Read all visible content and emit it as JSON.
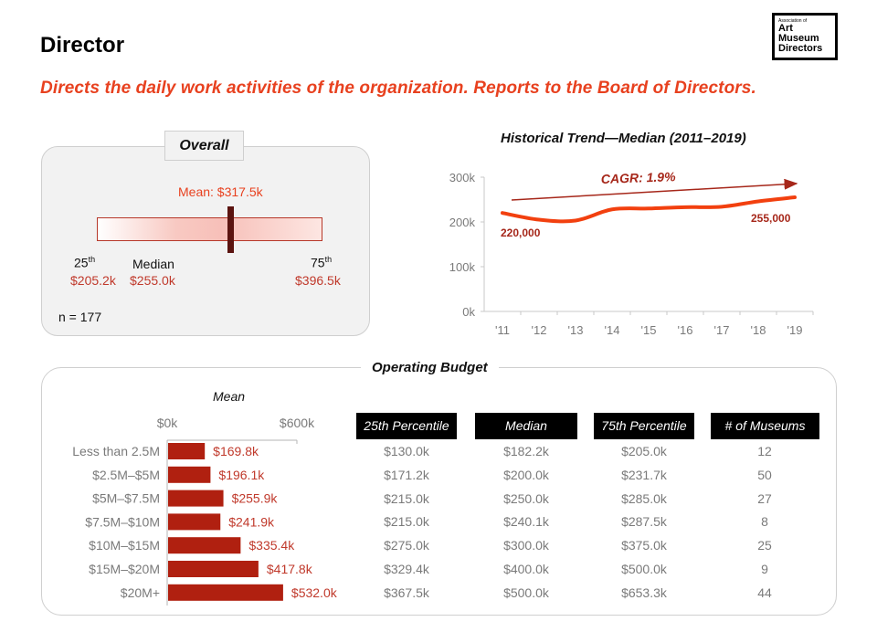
{
  "header": {
    "title": "Director",
    "subtitle": "Directs the daily work activities of the organization. Reports to the Board of Directors.",
    "logo": {
      "line1": "Association of",
      "line2": "Art",
      "line3": "Museum",
      "line4": "Directors"
    }
  },
  "colors": {
    "accent": "#e8411f",
    "bar": "#b02010",
    "dark_marker": "#5b1410",
    "value_text": "#c0392b",
    "arrow": "#a6271a"
  },
  "overall": {
    "tab_label": "Overall",
    "mean_label": "Mean: $317.5k",
    "p25_label": "25",
    "p25_sup": "th",
    "p25_value": "$205.2k",
    "median_label": "Median",
    "median_value": "$255.0k",
    "p75_label": "75",
    "p75_sup": "th",
    "p75_value": "$396.5k",
    "n_label": "n = 177",
    "range": {
      "min": 205.2,
      "max": 396.5,
      "mean": 317.5,
      "median": 255.0
    }
  },
  "chart_data": [
    {
      "type": "line",
      "title": "Historical Trend—Median (2011–2019)",
      "x": [
        "'11",
        "'12",
        "'13",
        "'14",
        "'15",
        "'16",
        "'17",
        "'18",
        "'19"
      ],
      "series": [
        {
          "name": "Median",
          "values": [
            220000,
            205000,
            203000,
            228000,
            230000,
            233000,
            234000,
            246000,
            255000
          ]
        }
      ],
      "yticks": [
        "0k",
        "100k",
        "200k",
        "300k"
      ],
      "ylim": [
        0,
        300000
      ],
      "xlabel": "",
      "ylabel": "",
      "grid": false,
      "annotations": {
        "cagr": "CAGR: 1.9%",
        "start_label": "220,000",
        "end_label": "255,000"
      }
    },
    {
      "type": "bar",
      "orientation": "horizontal",
      "title": "Mean",
      "categories": [
        "Less than 2.5M",
        "$2.5M–$5M",
        "$5M–$7.5M",
        "$7.5M–$10M",
        "$10M–$15M",
        "$15M–$20M",
        "$20M+"
      ],
      "values": [
        169.8,
        196.1,
        255.9,
        241.9,
        335.4,
        417.8,
        532.0
      ],
      "value_labels": [
        "$169.8k",
        "$196.1k",
        "$255.9k",
        "$241.9k",
        "$335.4k",
        "$417.8k",
        "$532.0k"
      ],
      "xticks": [
        "$0k",
        "$600k"
      ],
      "xlim": [
        0,
        600
      ],
      "xlabel": "",
      "ylabel": ""
    }
  ],
  "budget": {
    "section_title": "Operating Budget",
    "mean_header": "Mean",
    "columns": [
      "25th Percentile",
      "Median",
      "75th Percentile",
      "# of Museums"
    ],
    "rows": [
      [
        "$130.0k",
        "$182.2k",
        "$205.0k",
        "12"
      ],
      [
        "$171.2k",
        "$200.0k",
        "$231.7k",
        "50"
      ],
      [
        "$215.0k",
        "$250.0k",
        "$285.0k",
        "27"
      ],
      [
        "$215.0k",
        "$240.1k",
        "$287.5k",
        "8"
      ],
      [
        "$275.0k",
        "$300.0k",
        "$375.0k",
        "25"
      ],
      [
        "$329.4k",
        "$400.0k",
        "$500.0k",
        "9"
      ],
      [
        "$367.5k",
        "$500.0k",
        "$653.3k",
        "44"
      ]
    ]
  }
}
